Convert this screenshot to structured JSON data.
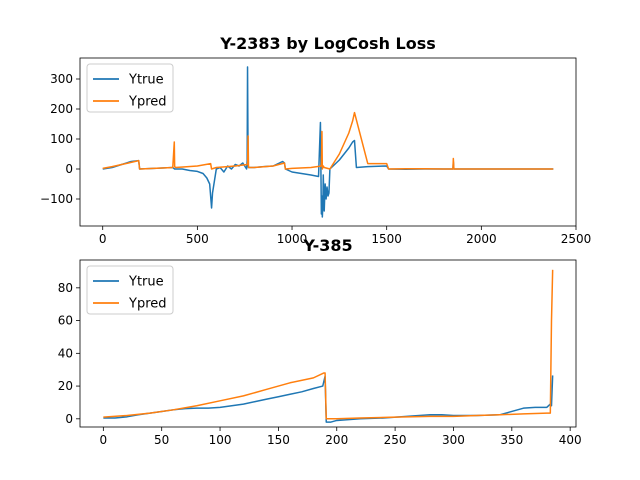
{
  "chart_data": [
    {
      "type": "line",
      "title": "Y-2383 by LogCosh Loss",
      "xlabel": "",
      "ylabel": "",
      "xlim": [
        -120,
        2500
      ],
      "ylim": [
        -190,
        370
      ],
      "xticks": [
        0,
        500,
        1000,
        1500,
        2000,
        2500
      ],
      "yticks": [
        -100,
        0,
        100,
        200,
        300
      ],
      "legend_position": "upper-left",
      "series": [
        {
          "name": "Ytrue",
          "color": "#1f77b4",
          "x": [
            0,
            50,
            100,
            150,
            190,
            195,
            300,
            370,
            380,
            385,
            420,
            460,
            500,
            530,
            550,
            565,
            575,
            580,
            600,
            620,
            640,
            660,
            680,
            700,
            720,
            740,
            760,
            763,
            765,
            768,
            770,
            800,
            850,
            900,
            950,
            960,
            965,
            1000,
            1050,
            1100,
            1140,
            1150,
            1155,
            1158,
            1160,
            1163,
            1165,
            1170,
            1175,
            1180,
            1185,
            1190,
            1195,
            1200,
            1250,
            1300,
            1320,
            1330,
            1340,
            1400,
            1500,
            1510,
            1600,
            1700,
            1800,
            1850,
            1852,
            1855,
            1900,
            2000,
            2100,
            2200,
            2300,
            2380
          ],
          "y": [
            0,
            5,
            15,
            25,
            28,
            0,
            3,
            5,
            0,
            0,
            0,
            -5,
            -8,
            -15,
            -30,
            -50,
            -130,
            -80,
            0,
            5,
            -10,
            10,
            0,
            15,
            10,
            20,
            0,
            30,
            340,
            15,
            5,
            5,
            8,
            10,
            25,
            20,
            0,
            -10,
            -15,
            -20,
            -25,
            155,
            -150,
            -90,
            -160,
            -120,
            -20,
            -140,
            -50,
            -100,
            -60,
            -90,
            -80,
            0,
            30,
            70,
            90,
            95,
            5,
            8,
            10,
            0,
            -1,
            0,
            0,
            0,
            25,
            0,
            0,
            0,
            0,
            0,
            0,
            0
          ]
        },
        {
          "name": "Ypred",
          "color": "#ff7f0e",
          "x": [
            0,
            50,
            100,
            150,
            190,
            195,
            300,
            370,
            378,
            380,
            385,
            500,
            570,
            575,
            600,
            700,
            765,
            768,
            770,
            800,
            900,
            960,
            965,
            1000,
            1100,
            1155,
            1158,
            1160,
            1165,
            1170,
            1200,
            1250,
            1300,
            1320,
            1330,
            1400,
            1500,
            1510,
            1600,
            1700,
            1800,
            1850,
            1852,
            1855,
            1900,
            2000,
            2100,
            2200,
            2300,
            2380
          ],
          "y": [
            2,
            8,
            15,
            22,
            28,
            0,
            3,
            5,
            90,
            8,
            5,
            10,
            18,
            0,
            5,
            10,
            15,
            110,
            5,
            5,
            10,
            20,
            0,
            2,
            5,
            10,
            125,
            0,
            10,
            5,
            0,
            50,
            120,
            160,
            188,
            18,
            18,
            0,
            1,
            1,
            0,
            0,
            35,
            0,
            0,
            0,
            0,
            0,
            0,
            0
          ]
        }
      ]
    },
    {
      "type": "line",
      "title": "Y-385",
      "xlabel": "",
      "ylabel": "",
      "xlim": [
        -20,
        405
      ],
      "ylim": [
        -5,
        97
      ],
      "xticks": [
        0,
        50,
        100,
        150,
        200,
        250,
        300,
        350,
        400
      ],
      "yticks": [
        0,
        20,
        40,
        60,
        80
      ],
      "legend_position": "upper-left",
      "series": [
        {
          "name": "Ytrue",
          "color": "#1f77b4",
          "x": [
            0,
            10,
            20,
            30,
            40,
            50,
            60,
            70,
            80,
            90,
            100,
            110,
            120,
            130,
            140,
            150,
            160,
            170,
            180,
            188,
            190,
            191,
            195,
            200,
            220,
            240,
            260,
            280,
            290,
            300,
            320,
            340,
            360,
            370,
            380,
            383,
            384,
            385
          ],
          "y": [
            0.5,
            0.5,
            1.2,
            2.5,
            3.5,
            4.5,
            5.5,
            6.2,
            6.5,
            6.5,
            7,
            8,
            9,
            10.5,
            12,
            13.5,
            15,
            16.5,
            18.5,
            20,
            26,
            -2,
            -2,
            -1,
            0,
            0.5,
            1.5,
            2.5,
            2.5,
            2,
            2,
            2.5,
            6.5,
            7,
            7,
            9,
            8,
            26.5
          ]
        },
        {
          "name": "Ypred",
          "color": "#ff7f0e",
          "x": [
            0,
            20,
            40,
            60,
            80,
            100,
            120,
            140,
            160,
            180,
            189,
            190,
            191,
            200,
            220,
            250,
            280,
            300,
            320,
            340,
            360,
            380,
            383,
            384,
            385
          ],
          "y": [
            1,
            2,
            3.5,
            5.5,
            8,
            11,
            14,
            18,
            22,
            25,
            28,
            28,
            0,
            0,
            0.5,
            1,
            1.5,
            1.5,
            2,
            2.5,
            3,
            3.5,
            3.5,
            60,
            91
          ]
        }
      ]
    }
  ]
}
